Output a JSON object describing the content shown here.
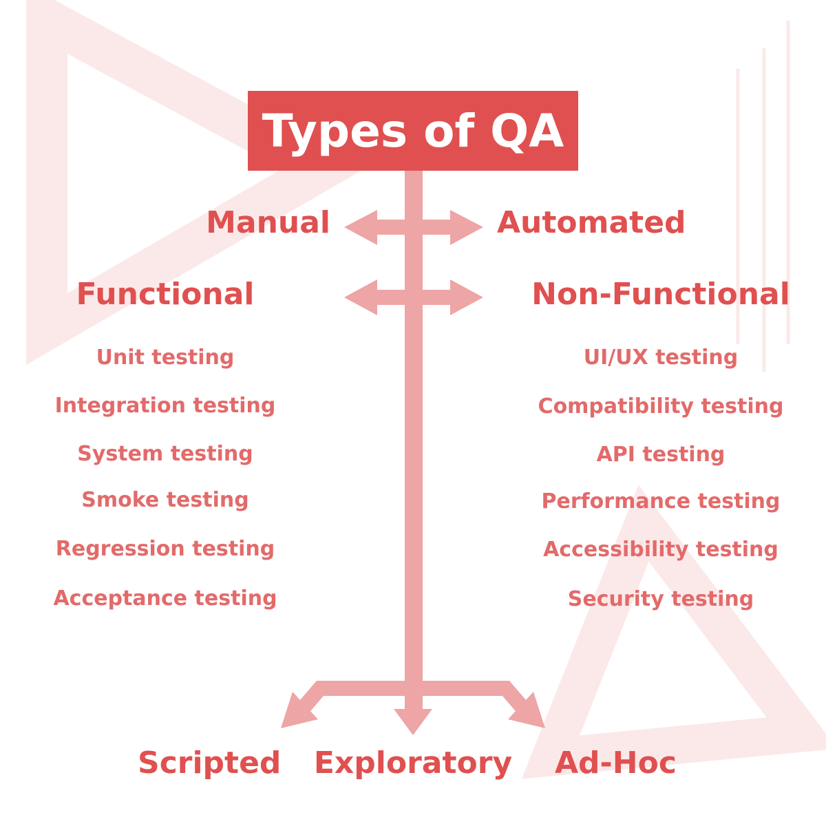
{
  "title": "Types of QA",
  "pairs": [
    {
      "left": "Manual",
      "right": "Automated"
    },
    {
      "left": "Functional",
      "right": "Non-Functional"
    }
  ],
  "functional": [
    "Unit testing",
    "Integration testing",
    "System testing",
    "Smoke testing",
    "Regression testing",
    "Acceptance testing"
  ],
  "non_functional": [
    "UI/UX testing",
    "Compatibility testing",
    "API testing",
    "Performance testing",
    "Accessibility testing",
    "Security testing"
  ],
  "bottom": [
    "Scripted",
    "Exploratory",
    "Ad-Hoc"
  ],
  "colors": {
    "primary": "#e05050",
    "arrow": "#eda5a5",
    "decor": "#fbe9e9"
  }
}
